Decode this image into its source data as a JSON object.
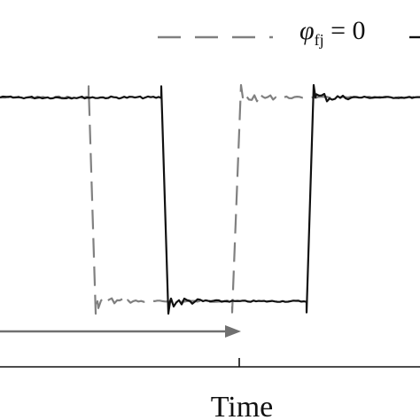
{
  "chart_data": {
    "type": "line",
    "xlabel": "Time",
    "ylabel": "",
    "xlim": [
      0,
      474
    ],
    "ylim": [
      0,
      1
    ],
    "grid": false,
    "legend_placement": "top",
    "legend": [
      {
        "label_symbol": "φ",
        "label_subscript": "fj",
        "label_rest": " = 0",
        "style": "dashed",
        "color": "#808080"
      },
      {
        "label_symbol": "",
        "label_subscript": "",
        "label_rest": "",
        "style": "solid",
        "color": "#111111"
      }
    ],
    "series": [
      {
        "style": "dashed",
        "color": "#808080",
        "x": [
          0,
          100,
          108,
          262,
          272,
          474
        ],
        "y": [
          1,
          1,
          0,
          0,
          1,
          1
        ]
      },
      {
        "style": "solid",
        "color": "#111111",
        "x": [
          0,
          182,
          190,
          346,
          354,
          474
        ],
        "y": [
          1,
          1,
          0,
          0,
          1,
          1
        ]
      }
    ],
    "annotations": [
      {
        "type": "arrow",
        "color": "#707070",
        "x_from": 0,
        "x_to": 272,
        "y": -0.12
      }
    ],
    "x_ticks": [
      270
    ]
  },
  "colors": {
    "solid": "#111111",
    "dashed": "#808080",
    "arrow": "#707070",
    "axis": "#111111"
  }
}
